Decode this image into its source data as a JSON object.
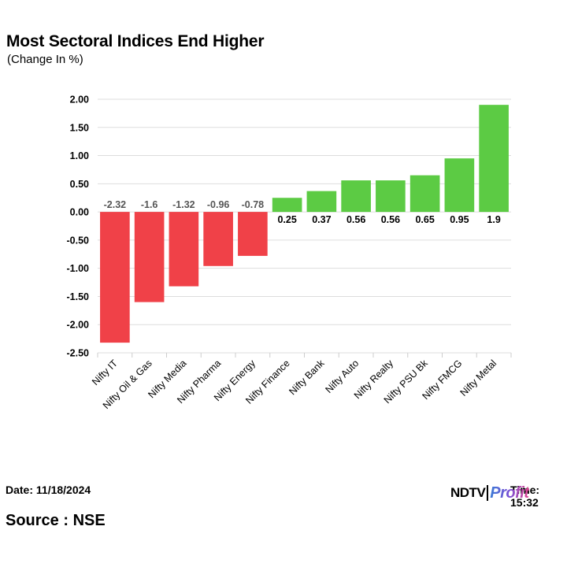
{
  "title": "Most Sectoral Indices End Higher",
  "subtitle": "(Change In %)",
  "footer": {
    "date": "Date: 11/18/2024",
    "time": "Time: 15:32",
    "source": "Source : NSE"
  },
  "logo": {
    "primary": "NDTV",
    "secondary": "Profit"
  },
  "colors": {
    "negative": "#f04148",
    "positive": "#5ccb44",
    "grid": "#dddddd"
  },
  "chart_data": {
    "type": "bar",
    "title": "Most Sectoral Indices End Higher",
    "subtitle": "(Change In %)",
    "xlabel": "",
    "ylabel": "",
    "ylim": [
      -2.5,
      2.0
    ],
    "yticks": [
      2.0,
      1.5,
      1.0,
      0.5,
      0.0,
      -0.5,
      -1.0,
      -1.5,
      -2.0,
      -2.5
    ],
    "ytick_labels": [
      "2.00",
      "1.50",
      "1.00",
      "0.50",
      "0.00",
      "-0.50",
      "-1.00",
      "-1.50",
      "-2.00",
      "-2.50"
    ],
    "grid": true,
    "categories": [
      "Nifty IT",
      "Nifty Oil & Gas",
      "Nifty Media",
      "Nifty Pharma",
      "Nifty Energy",
      "Nifty Finance",
      "Nifty Bank",
      "Nifty Auto",
      "Nifty Realty",
      "Nifty PSU Bk",
      "Nifty FMCG",
      "Nifty Metal"
    ],
    "values": [
      -2.32,
      -1.6,
      -1.32,
      -0.96,
      -0.78,
      0.25,
      0.37,
      0.56,
      0.56,
      0.65,
      0.95,
      1.9
    ],
    "data_labels": [
      "-2.32",
      "-1.6",
      "-1.32",
      "-0.96",
      "-0.78",
      "0.25",
      "0.37",
      "0.56",
      "0.56",
      "0.65",
      "0.95",
      "1.9"
    ]
  }
}
